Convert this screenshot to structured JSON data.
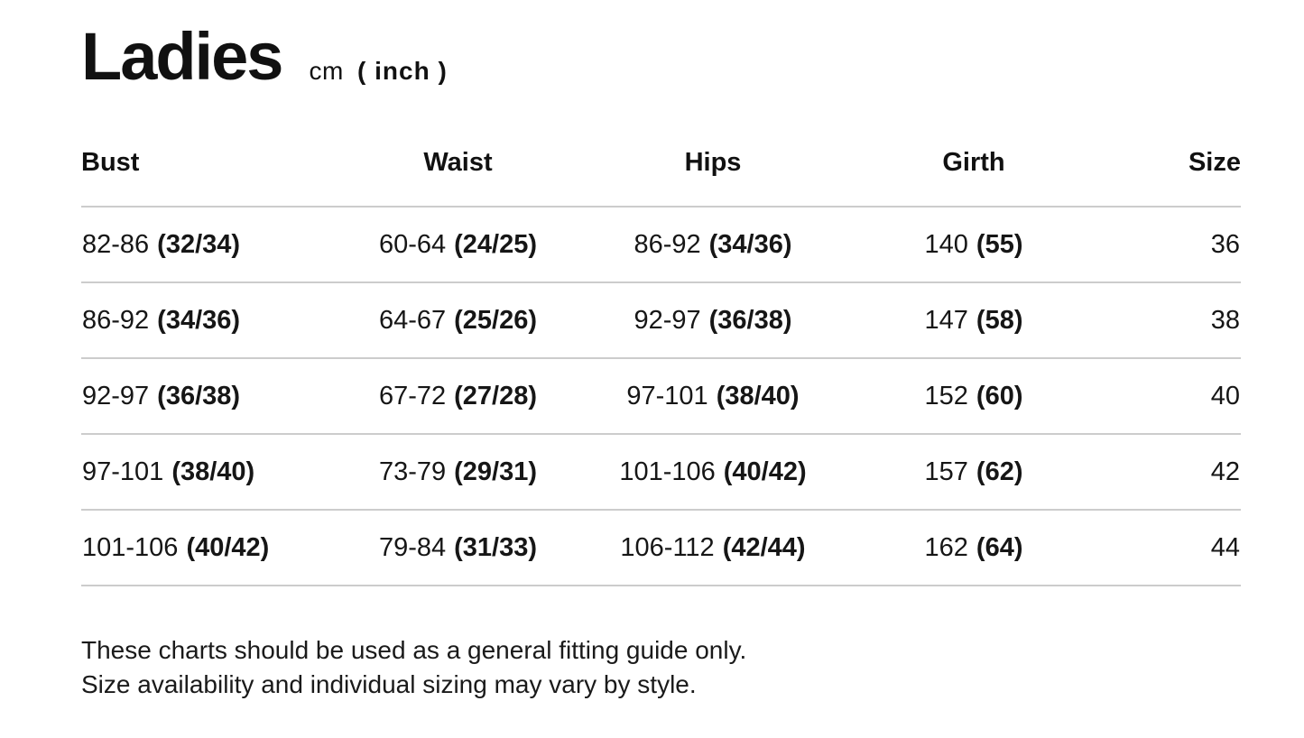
{
  "header": {
    "title": "Ladies",
    "unit_cm": "cm",
    "unit_inch": "( inch )"
  },
  "table": {
    "columns": [
      {
        "label": "Bust",
        "align": "left"
      },
      {
        "label": "Waist",
        "align": "center"
      },
      {
        "label": "Hips",
        "align": "center"
      },
      {
        "label": "Girth",
        "align": "center"
      },
      {
        "label": "Size",
        "align": "right"
      }
    ],
    "rows": [
      {
        "bust": {
          "cm": "82-86",
          "inch": "(32/34)"
        },
        "waist": {
          "cm": "60-64",
          "inch": "(24/25)"
        },
        "hips": {
          "cm": "86-92",
          "inch": "(34/36)"
        },
        "girth": {
          "cm": "140",
          "inch": "(55)"
        },
        "size": "36"
      },
      {
        "bust": {
          "cm": "86-92",
          "inch": "(34/36)"
        },
        "waist": {
          "cm": "64-67",
          "inch": "(25/26)"
        },
        "hips": {
          "cm": "92-97",
          "inch": "(36/38)"
        },
        "girth": {
          "cm": "147",
          "inch": "(58)"
        },
        "size": "38"
      },
      {
        "bust": {
          "cm": "92-97",
          "inch": "(36/38)"
        },
        "waist": {
          "cm": "67-72",
          "inch": "(27/28)"
        },
        "hips": {
          "cm": "97-101",
          "inch": "(38/40)"
        },
        "girth": {
          "cm": "152",
          "inch": "(60)"
        },
        "size": "40"
      },
      {
        "bust": {
          "cm": "97-101",
          "inch": "(38/40)"
        },
        "waist": {
          "cm": "73-79",
          "inch": "(29/31)"
        },
        "hips": {
          "cm": "101-106",
          "inch": "(40/42)"
        },
        "girth": {
          "cm": "157",
          "inch": "(62)"
        },
        "size": "42"
      },
      {
        "bust": {
          "cm": "101-106",
          "inch": "(40/42)"
        },
        "waist": {
          "cm": "79-84",
          "inch": "(31/33)"
        },
        "hips": {
          "cm": "106-112",
          "inch": "(42/44)"
        },
        "girth": {
          "cm": "162",
          "inch": "(64)"
        },
        "size": "44"
      }
    ]
  },
  "footer": {
    "line1": "These charts should be used as a general fitting guide only.",
    "line2": "Size availability and individual sizing may vary by style."
  },
  "colors": {
    "text": "#161616",
    "divider": "#cccccc",
    "background": "#ffffff"
  }
}
